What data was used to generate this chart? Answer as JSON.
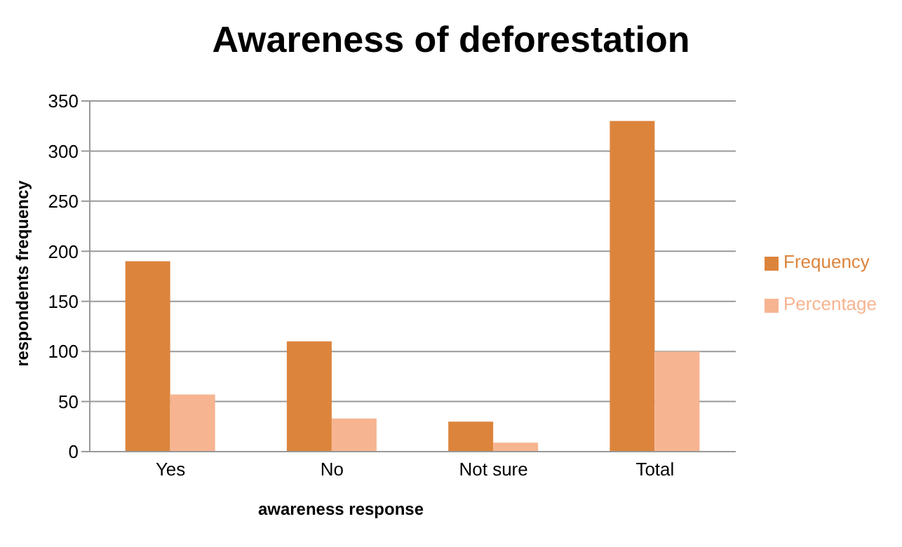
{
  "chart_data": {
    "type": "bar",
    "title": "Awareness of deforestation",
    "xlabel": "awareness  response",
    "ylabel": "respondents  frequency",
    "categories": [
      "Yes",
      "No",
      "Not sure",
      "Total"
    ],
    "series": [
      {
        "name": "Frequency",
        "color": "#dc843c",
        "values": [
          190,
          110,
          30,
          330
        ]
      },
      {
        "name": "Percentage",
        "color": "#f7b491",
        "values": [
          57,
          33,
          9,
          100
        ]
      }
    ],
    "ylim": [
      0,
      350
    ],
    "yticks": [
      0,
      50,
      100,
      150,
      200,
      250,
      300,
      350
    ],
    "grid": "y",
    "legend": "right"
  }
}
